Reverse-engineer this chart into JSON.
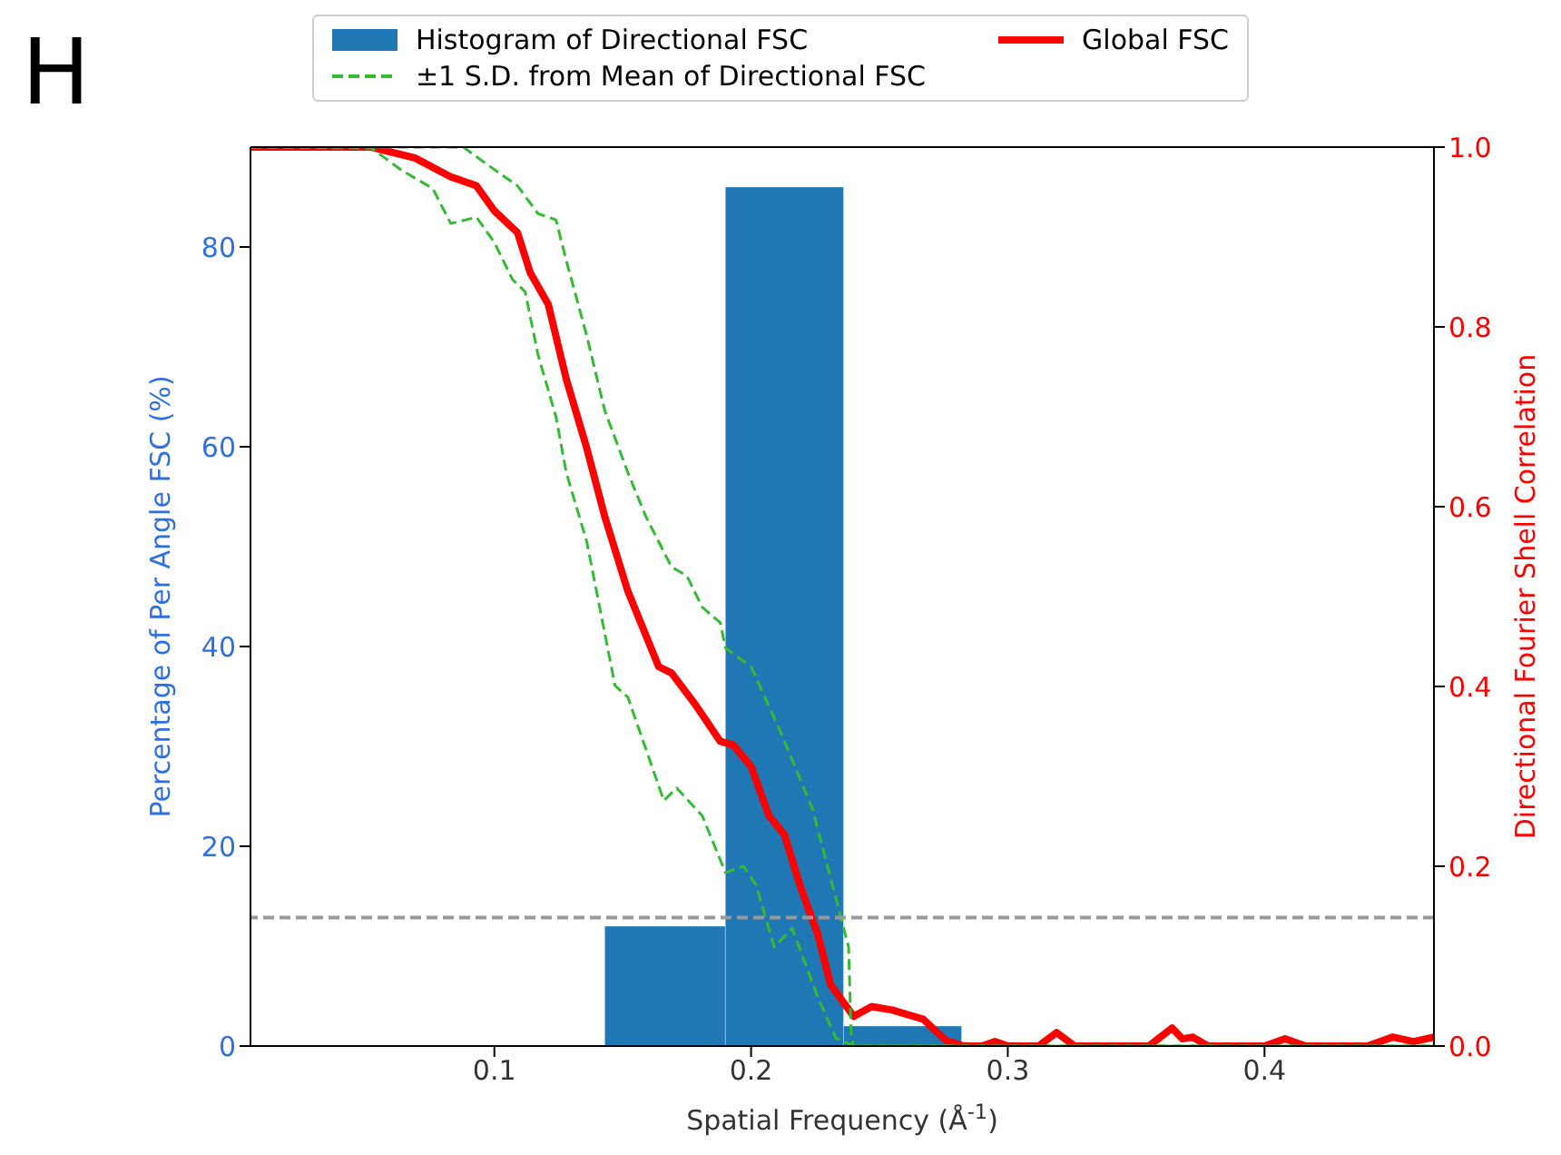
{
  "chart_data": {
    "type": "histogram",
    "annotations": [
      "H"
    ],
    "xlabel": "Spatial Frequency (Å$^{-1}$)",
    "ylabel": "Percentage of Per Angle FSC (%)",
    "y2label": "Directional Fourier Shell Correlation",
    "xlim": [
      0.005,
      0.466
    ],
    "xticks": [
      0.1,
      0.2,
      0.3,
      0.4
    ],
    "ylim": [
      0,
      90
    ],
    "yticks": [
      0,
      20,
      40,
      60,
      80
    ],
    "y2lim": [
      0,
      1
    ],
    "y2ticks": [
      {
        "value": 0,
        "label": "0.0"
      },
      {
        "value": 0.2,
        "label": "0.2"
      },
      {
        "value": 0.4,
        "label": "0.4"
      },
      {
        "value": 0.6,
        "label": "0.6"
      },
      {
        "value": 0.8,
        "label": "0.8"
      },
      {
        "value": 1,
        "label": "1.0"
      }
    ],
    "grid": false,
    "legend": "top",
    "ref_lines": [
      {
        "axis": "y2",
        "value": 0.143,
        "label": null,
        "color": "#999999",
        "line_style": "dashed"
      }
    ],
    "series": [
      {
        "type": "histogram",
        "name": "Histogram of Directional FSC",
        "color": "#1f77b4",
        "bins": [
          0.143,
          0.19,
          0.236,
          0.282
        ],
        "values": [
          12,
          86,
          2
        ]
      },
      {
        "type": "line",
        "name": "Global FSC",
        "color": "#ff0000",
        "axis": "y2",
        "line_style": "solid",
        "x": [
          0.005,
          0.052,
          0.069,
          0.083,
          0.093,
          0.1,
          0.109,
          0.114,
          0.121,
          0.128,
          0.136,
          0.143,
          0.152,
          0.164,
          0.169,
          0.178,
          0.188,
          0.193,
          0.2,
          0.207,
          0.213,
          0.219,
          0.226,
          0.231,
          0.24,
          0.247,
          0.255,
          0.267,
          0.276,
          0.283,
          0.29,
          0.295,
          0.3,
          0.312,
          0.319,
          0.326,
          0.355,
          0.364,
          0.368,
          0.372,
          0.378,
          0.4,
          0.408,
          0.416,
          0.44,
          0.45,
          0.458,
          0.466
        ],
        "values": [
          1.0,
          1.0,
          0.988,
          0.967,
          0.957,
          0.929,
          0.905,
          0.86,
          0.825,
          0.742,
          0.665,
          0.589,
          0.506,
          0.422,
          0.415,
          0.381,
          0.339,
          0.335,
          0.311,
          0.256,
          0.235,
          0.179,
          0.124,
          0.068,
          0.033,
          0.044,
          0.04,
          0.03,
          0.006,
          0,
          0,
          0.005,
          0,
          0,
          0.015,
          0,
          0,
          0.02,
          0.008,
          0.01,
          0,
          0,
          0.008,
          0,
          0,
          0.01,
          0.005,
          0.01
        ]
      },
      {
        "type": "line",
        "name": "±1 S.D. from Mean of Directional FSC",
        "color": "#33bb33",
        "axis": "y2",
        "line_style": "dashed",
        "x": [
          0.005,
          0.069,
          0.088,
          0.097,
          0.109,
          0.117,
          0.124,
          0.128,
          0.136,
          0.143,
          0.152,
          0.159,
          0.169,
          0.175,
          0.181,
          0.188,
          0.19,
          0.2,
          0.212,
          0.224,
          0.233,
          0.238,
          0.239,
          0.24,
          0.466
        ],
        "values": [
          1.0,
          1.0,
          1.0,
          0.981,
          0.957,
          0.926,
          0.919,
          0.874,
          0.79,
          0.707,
          0.638,
          0.589,
          0.533,
          0.523,
          0.488,
          0.471,
          0.443,
          0.422,
          0.346,
          0.263,
          0.165,
          0.11,
          0.01,
          0,
          0
        ]
      },
      {
        "type": "line",
        "color": "#33bb33",
        "axis": "y2",
        "line_style": "dashed",
        "x": [
          0.005,
          0.052,
          0.064,
          0.076,
          0.083,
          0.093,
          0.1,
          0.107,
          0.112,
          0.117,
          0.124,
          0.128,
          0.136,
          0.147,
          0.152,
          0.166,
          0.171,
          0.181,
          0.19,
          0.197,
          0.202,
          0.209,
          0.216,
          0.226,
          0.233,
          0.24,
          0.466
        ],
        "values": [
          1.0,
          0.999,
          0.974,
          0.954,
          0.915,
          0.922,
          0.894,
          0.853,
          0.839,
          0.769,
          0.7,
          0.638,
          0.561,
          0.401,
          0.388,
          0.273,
          0.287,
          0.256,
          0.193,
          0.2,
          0.179,
          0.11,
          0.131,
          0.054,
          0.009,
          0,
          0
        ]
      }
    ]
  }
}
